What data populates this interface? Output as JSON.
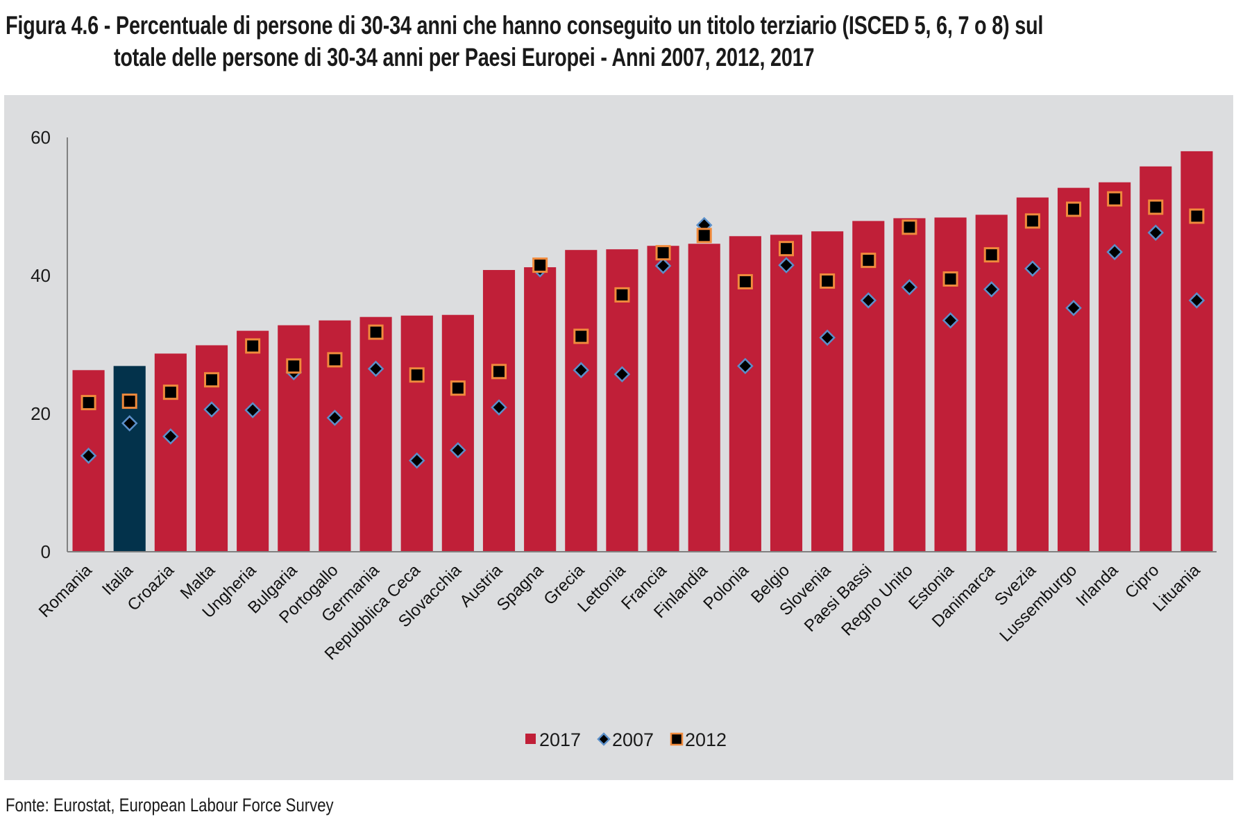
{
  "title": {
    "line1": "Figura 4.6 - Percentuale di persone di 30-34 anni che hanno conseguito un titolo terziario (ISCED 5, 6, 7 o 8) sul",
    "line2": "totale delle persone di 30-34 anni per Paesi Europei - Anni 2007, 2012, 2017"
  },
  "source": "Fonte: Eurostat, European Labour Force Survey",
  "colors": {
    "bar_2017": "#c01f38",
    "bar_highlight": "#03324b",
    "marker_fill": "#000000",
    "marker_2007_stroke": "#5b8fc9",
    "marker_2012_stroke": "#f08a3c",
    "panel_bg": "#dcdddf",
    "axis": "#808080"
  },
  "chart_data": {
    "type": "bar",
    "title": "Percentuale di persone di 30-34 anni che hanno conseguito un titolo terziario (ISCED 5, 6, 7 o 8) sul totale delle persone di 30-34 anni per Paesi Europei - Anni 2007, 2012, 2017",
    "xlabel": "",
    "ylabel": "",
    "ylim": [
      0,
      60
    ],
    "yticks": [
      0,
      20,
      40,
      60
    ],
    "grid": false,
    "legend_position": "bottom-center",
    "highlight_category": "Italia",
    "categories": [
      "Romania",
      "Italia",
      "Croazia",
      "Malta",
      "Ungheria",
      "Bulgaria",
      "Portogallo",
      "Germania",
      "Repubblica Ceca",
      "Slovacchia",
      "Austria",
      "Spagna",
      "Grecia",
      "Lettonia",
      "Francia",
      "Finlandia",
      "Polonia",
      "Belgio",
      "Slovenia",
      "Paesi Bassi",
      "Regno Unito",
      "Estonia",
      "Danimarca",
      "Svezia",
      "Lussemburgo",
      "Irlanda",
      "Cipro",
      "Lituania"
    ],
    "series": [
      {
        "name": "2017",
        "kind": "bar",
        "values": [
          26.3,
          26.9,
          28.7,
          29.9,
          32.0,
          32.8,
          33.5,
          34.0,
          34.2,
          34.3,
          40.8,
          41.2,
          43.7,
          43.8,
          44.3,
          44.6,
          45.7,
          45.9,
          46.4,
          47.9,
          48.3,
          48.4,
          48.8,
          51.3,
          52.7,
          53.5,
          55.8,
          58.0
        ]
      },
      {
        "name": "2007",
        "kind": "diamond",
        "values": [
          13.9,
          18.6,
          16.7,
          20.6,
          20.5,
          26.0,
          19.4,
          26.5,
          13.2,
          14.7,
          20.9,
          40.9,
          26.3,
          25.7,
          41.4,
          47.3,
          26.9,
          41.5,
          31.0,
          36.4,
          38.3,
          33.5,
          38.0,
          41.0,
          35.3,
          43.4,
          46.2,
          36.4
        ]
      },
      {
        "name": "2012",
        "kind": "square",
        "values": [
          21.6,
          21.8,
          23.1,
          24.9,
          29.8,
          26.9,
          27.8,
          31.8,
          25.6,
          23.7,
          26.1,
          41.5,
          31.2,
          37.2,
          43.3,
          45.8,
          39.1,
          43.9,
          39.2,
          42.2,
          47.0,
          39.5,
          43.0,
          47.9,
          49.6,
          51.1,
          49.9,
          48.6
        ]
      }
    ]
  },
  "legend": [
    {
      "label": "2017",
      "symbol": "bar"
    },
    {
      "label": "2007",
      "symbol": "diamond"
    },
    {
      "label": "2012",
      "symbol": "square"
    }
  ]
}
